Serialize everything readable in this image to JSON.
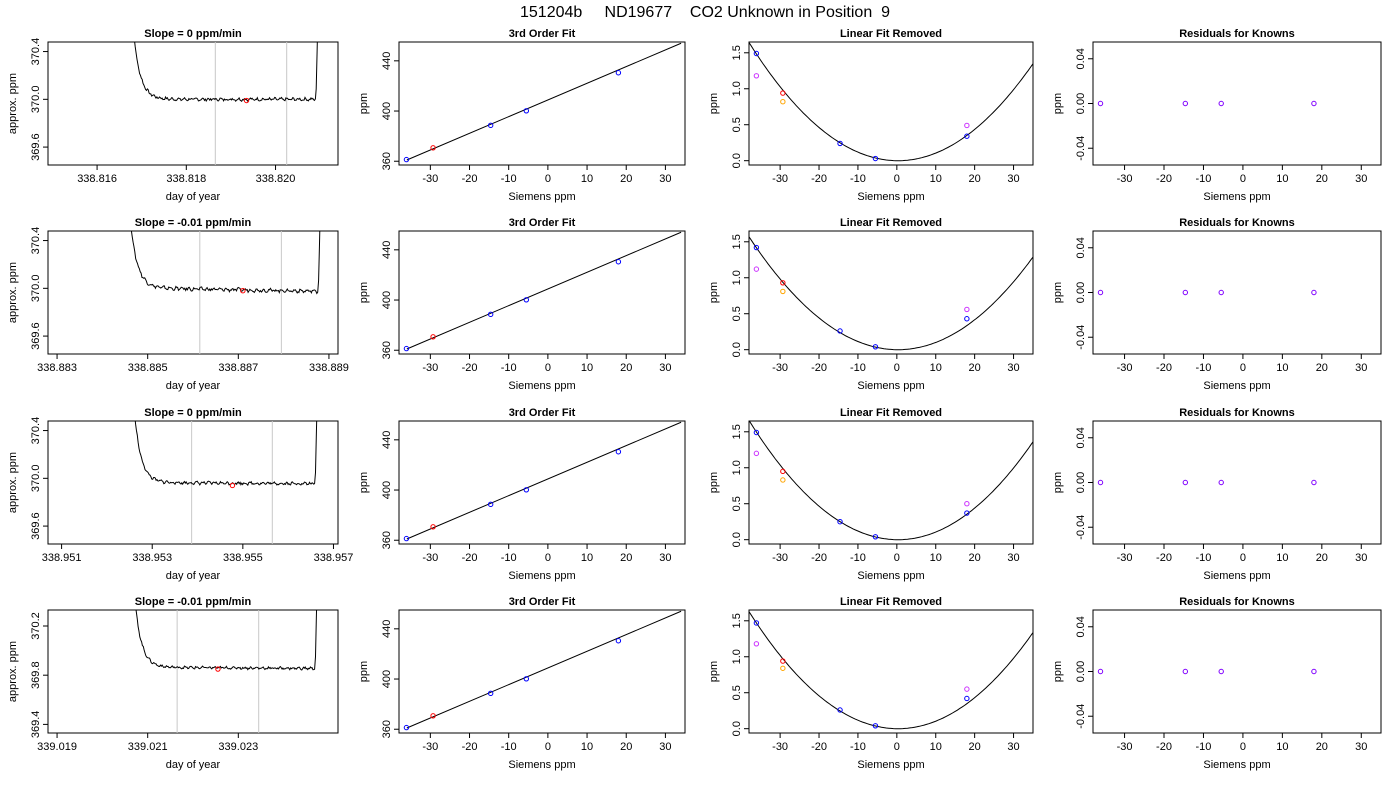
{
  "suptitle": "151204b     ND19677    CO2 Unknown in Position  9",
  "colors": {
    "trace": "#000000",
    "window_lines": "#c8c8c8",
    "blue": "#0000ff",
    "red": "#ff0000",
    "orange": "#ffa500",
    "magenta": "#cc33ff",
    "purple": "#8000ff"
  },
  "rows": [
    {
      "drift": {
        "title": "Slope =  0  ppm/min",
        "xlabel": "day of year",
        "ylabel": "approx. ppm",
        "xlim": [
          338.8149,
          338.8214
        ],
        "ylim": [
          369.45,
          370.48
        ],
        "xticks": [
          338.816,
          338.818,
          338.82
        ],
        "xtick_labels": [
          "338.816",
          "338.818",
          "338.820"
        ],
        "yticks": [
          369.6,
          370.0,
          370.4
        ],
        "ytick_labels": [
          "369.6",
          "370.0",
          "370.4"
        ],
        "start": 338.8167,
        "end": 338.82097,
        "level": 370.0,
        "ripple": 0.012,
        "tilt": 0.0,
        "window": [
          338.81865,
          338.82025
        ],
        "marker": [
          338.81935,
          369.99
        ]
      },
      "fit": {
        "title": "3rd Order Fit",
        "xlabel": "Siemens ppm",
        "ylabel": "ppm",
        "xlim": [
          -38,
          35
        ],
        "ylim": [
          357,
          455
        ],
        "xticks": [
          -30,
          -20,
          -10,
          0,
          10,
          20,
          30
        ],
        "yticks": [
          360,
          400,
          440
        ],
        "line": [
          [
            -36,
            361
          ],
          [
            34,
            454
          ]
        ],
        "points_blue": [
          [
            -36.1,
            361.3
          ],
          [
            -14.6,
            388.6
          ],
          [
            -5.5,
            400.2
          ],
          [
            18.0,
            430.5
          ]
        ],
        "points_red": [
          [
            -29.3,
            370.7
          ]
        ]
      },
      "lin": {
        "title": "Linear Fit Removed",
        "xlabel": "Siemens ppm",
        "ylabel": "ppm",
        "xlim": [
          -38,
          35
        ],
        "ylim": [
          -0.06,
          1.65
        ],
        "xticks": [
          -30,
          -20,
          -10,
          0,
          10,
          20,
          30
        ],
        "yticks": [
          0.0,
          0.5,
          1.0,
          1.5
        ],
        "ytick_labels": [
          "0.0",
          "0.5",
          "1.0",
          "1.5"
        ],
        "curve_a": 0.00112,
        "curve_x0": 0.3,
        "points_blue": [
          [
            -36.1,
            1.49
          ],
          [
            -14.6,
            0.24
          ],
          [
            -5.5,
            0.03
          ],
          [
            18.0,
            0.34
          ]
        ],
        "points_red": [
          [
            -29.3,
            0.94
          ]
        ],
        "points_orange": [
          [
            -29.3,
            0.82
          ]
        ],
        "points_magenta": [
          [
            -36.1,
            1.18
          ],
          [
            18.0,
            0.49
          ]
        ]
      },
      "res": {
        "title": "Residuals for Knowns",
        "xlabel": "Siemens ppm",
        "ylabel": "ppm",
        "xlim": [
          -38,
          35
        ],
        "ylim": [
          -0.055,
          0.055
        ],
        "xticks": [
          -30,
          -20,
          -10,
          0,
          10,
          20,
          30
        ],
        "yticks": [
          -0.04,
          0.0,
          0.04
        ],
        "ytick_labels": [
          "-0.04",
          "0.00",
          "0.04"
        ],
        "points": [
          [
            -36.1,
            0.0
          ],
          [
            -14.6,
            0.0
          ],
          [
            -5.5,
            0.0
          ],
          [
            18.0,
            0.0
          ]
        ]
      }
    },
    {
      "drift": {
        "title": "Slope =  -0.01  ppm/min",
        "xlabel": "day of year",
        "ylabel": "approx. ppm",
        "xlim": [
          338.8828,
          338.8892
        ],
        "ylim": [
          369.45,
          370.48
        ],
        "xticks": [
          338.883,
          338.885,
          338.887,
          338.889
        ],
        "xtick_labels": [
          "338.883",
          "338.885",
          "338.887",
          "338.889"
        ],
        "yticks": [
          369.6,
          370.0,
          370.4
        ],
        "ytick_labels": [
          "369.6",
          "370.0",
          "370.4"
        ],
        "start": 338.8845,
        "end": 338.88883,
        "level": 369.99,
        "ripple": 0.014,
        "tilt": -0.03,
        "window": [
          338.88615,
          338.88795
        ],
        "marker": [
          338.8871,
          369.98
        ]
      },
      "fit": {
        "title": "3rd Order Fit",
        "xlabel": "Siemens ppm",
        "ylabel": "ppm",
        "xlim": [
          -38,
          35
        ],
        "ylim": [
          357,
          455
        ],
        "xticks": [
          -30,
          -20,
          -10,
          0,
          10,
          20,
          30
        ],
        "yticks": [
          360,
          400,
          440
        ],
        "line": [
          [
            -36,
            361
          ],
          [
            34,
            454
          ]
        ],
        "points_blue": [
          [
            -36.1,
            361.3
          ],
          [
            -14.6,
            388.6
          ],
          [
            -5.5,
            400.2
          ],
          [
            18.0,
            430.5
          ]
        ],
        "points_red": [
          [
            -29.3,
            370.7
          ]
        ]
      },
      "lin": {
        "title": "Linear Fit Removed",
        "xlabel": "Siemens ppm",
        "ylabel": "ppm",
        "xlim": [
          -38,
          35
        ],
        "ylim": [
          -0.06,
          1.65
        ],
        "xticks": [
          -30,
          -20,
          -10,
          0,
          10,
          20,
          30
        ],
        "yticks": [
          0.0,
          0.5,
          1.0,
          1.5
        ],
        "ytick_labels": [
          "0.0",
          "0.5",
          "1.0",
          "1.5"
        ],
        "curve_a": 0.00107,
        "curve_x0": 0.3,
        "points_blue": [
          [
            -36.1,
            1.42
          ],
          [
            -14.6,
            0.26
          ],
          [
            -5.5,
            0.04
          ],
          [
            18.0,
            0.43
          ]
        ],
        "points_red": [
          [
            -29.3,
            0.93
          ]
        ],
        "points_orange": [
          [
            -29.3,
            0.81
          ]
        ],
        "points_magenta": [
          [
            -36.1,
            1.12
          ],
          [
            18.0,
            0.56
          ]
        ]
      },
      "res": {
        "title": "Residuals for Knowns",
        "xlabel": "Siemens ppm",
        "ylabel": "ppm",
        "xlim": [
          -38,
          35
        ],
        "ylim": [
          -0.055,
          0.055
        ],
        "xticks": [
          -30,
          -20,
          -10,
          0,
          10,
          20,
          30
        ],
        "yticks": [
          -0.04,
          0.0,
          0.04
        ],
        "ytick_labels": [
          "-0.04",
          "0.00",
          "0.04"
        ],
        "points": [
          [
            -36.1,
            0.0
          ],
          [
            -14.6,
            0.0
          ],
          [
            -5.5,
            0.0
          ],
          [
            18.0,
            0.0
          ]
        ]
      }
    },
    {
      "drift": {
        "title": "Slope =  0  ppm/min",
        "xlabel": "day of year",
        "ylabel": "approx. ppm",
        "xlim": [
          338.9507,
          338.9571
        ],
        "ylim": [
          369.45,
          370.48
        ],
        "xticks": [
          338.951,
          338.953,
          338.955,
          338.957
        ],
        "xtick_labels": [
          "338.951",
          "338.953",
          "338.955",
          "338.957"
        ],
        "yticks": [
          369.6,
          370.0,
          370.4
        ],
        "ytick_labels": [
          "369.6",
          "370.0",
          "370.4"
        ],
        "start": 338.9525,
        "end": 338.95666,
        "level": 369.96,
        "ripple": 0.012,
        "tilt": -0.01,
        "window": [
          338.95387,
          338.95565
        ],
        "marker": [
          338.95477,
          369.94
        ]
      },
      "fit": {
        "title": "3rd Order Fit",
        "xlabel": "Siemens ppm",
        "ylabel": "ppm",
        "xlim": [
          -38,
          35
        ],
        "ylim": [
          357,
          455
        ],
        "xticks": [
          -30,
          -20,
          -10,
          0,
          10,
          20,
          30
        ],
        "yticks": [
          360,
          400,
          440
        ],
        "line": [
          [
            -36,
            361
          ],
          [
            34,
            454
          ]
        ],
        "points_blue": [
          [
            -36.1,
            361.3
          ],
          [
            -14.6,
            388.6
          ],
          [
            -5.5,
            400.2
          ],
          [
            18.0,
            430.5
          ]
        ],
        "points_red": [
          [
            -29.3,
            370.7
          ]
        ]
      },
      "lin": {
        "title": "Linear Fit Removed",
        "xlabel": "Siemens ppm",
        "ylabel": "ppm",
        "xlim": [
          -38,
          35
        ],
        "ylim": [
          -0.06,
          1.65
        ],
        "xticks": [
          -30,
          -20,
          -10,
          0,
          10,
          20,
          30
        ],
        "yticks": [
          0.0,
          0.5,
          1.0,
          1.5
        ],
        "ytick_labels": [
          "0.0",
          "0.5",
          "1.0",
          "1.5"
        ],
        "curve_a": 0.00113,
        "curve_x0": 0.3,
        "points_blue": [
          [
            -36.1,
            1.49
          ],
          [
            -14.6,
            0.25
          ],
          [
            -5.5,
            0.04
          ],
          [
            18.0,
            0.37
          ]
        ],
        "points_red": [
          [
            -29.3,
            0.95
          ]
        ],
        "points_orange": [
          [
            -29.3,
            0.83
          ]
        ],
        "points_magenta": [
          [
            -36.1,
            1.2
          ],
          [
            18.0,
            0.5
          ]
        ]
      },
      "res": {
        "title": "Residuals for Knowns",
        "xlabel": "Siemens ppm",
        "ylabel": "ppm",
        "xlim": [
          -38,
          35
        ],
        "ylim": [
          -0.055,
          0.055
        ],
        "xticks": [
          -30,
          -20,
          -10,
          0,
          10,
          20,
          30
        ],
        "yticks": [
          -0.04,
          0.0,
          0.04
        ],
        "ytick_labels": [
          "-0.04",
          "0.00",
          "0.04"
        ],
        "points": [
          [
            -36.1,
            0.0
          ],
          [
            -14.6,
            0.0
          ],
          [
            -5.5,
            0.0
          ],
          [
            18.0,
            0.0
          ]
        ]
      }
    },
    {
      "drift": {
        "title": "Slope =  -0.01  ppm/min",
        "xlabel": "day of year",
        "ylabel": "approx. ppm",
        "xlim": [
          339.0188,
          339.0252
        ],
        "ylim": [
          369.33,
          370.33
        ],
        "xticks": [
          339.019,
          339.021,
          339.023
        ],
        "xtick_labels": [
          "339.019",
          "339.021",
          "339.023"
        ],
        "yticks": [
          369.4,
          369.8,
          370.2
        ],
        "ytick_labels": [
          "369.4",
          "369.8",
          "370.2"
        ],
        "start": 339.0206,
        "end": 339.02476,
        "level": 369.86,
        "ripple": 0.01,
        "tilt": -0.01,
        "window": [
          339.02165,
          339.02345
        ],
        "marker": [
          339.02255,
          369.85
        ]
      },
      "fit": {
        "title": "3rd Order Fit",
        "xlabel": "Siemens ppm",
        "ylabel": "ppm",
        "xlim": [
          -38,
          35
        ],
        "ylim": [
          357,
          455
        ],
        "xticks": [
          -30,
          -20,
          -10,
          0,
          10,
          20,
          30
        ],
        "yticks": [
          360,
          400,
          440
        ],
        "line": [
          [
            -36,
            361
          ],
          [
            34,
            454
          ]
        ],
        "points_blue": [
          [
            -36.1,
            361.3
          ],
          [
            -14.6,
            388.6
          ],
          [
            -5.5,
            400.2
          ],
          [
            18.0,
            430.5
          ]
        ],
        "points_red": [
          [
            -29.3,
            370.7
          ]
        ]
      },
      "lin": {
        "title": "Linear Fit Removed",
        "xlabel": "Siemens ppm",
        "ylabel": "ppm",
        "xlim": [
          -38,
          35
        ],
        "ylim": [
          -0.06,
          1.65
        ],
        "xticks": [
          -30,
          -20,
          -10,
          0,
          10,
          20,
          30
        ],
        "yticks": [
          0.0,
          0.5,
          1.0,
          1.5
        ],
        "ytick_labels": [
          "0.0",
          "0.5",
          "1.0",
          "1.5"
        ],
        "curve_a": 0.00111,
        "curve_x0": 0.3,
        "points_blue": [
          [
            -36.1,
            1.47
          ],
          [
            -14.6,
            0.26
          ],
          [
            -5.5,
            0.04
          ],
          [
            18.0,
            0.42
          ]
        ],
        "points_red": [
          [
            -29.3,
            0.94
          ]
        ],
        "points_orange": [
          [
            -29.3,
            0.84
          ]
        ],
        "points_magenta": [
          [
            -36.1,
            1.18
          ],
          [
            18.0,
            0.55
          ]
        ]
      },
      "res": {
        "title": "Residuals for Knowns",
        "xlabel": "Siemens ppm",
        "ylabel": "ppm",
        "xlim": [
          -38,
          35
        ],
        "ylim": [
          -0.055,
          0.055
        ],
        "xticks": [
          -30,
          -20,
          -10,
          0,
          10,
          20,
          30
        ],
        "yticks": [
          -0.04,
          0.0,
          0.04
        ],
        "ytick_labels": [
          "-0.04",
          "0.00",
          "0.04"
        ],
        "points": [
          [
            -36.1,
            0.0
          ],
          [
            -14.6,
            0.0
          ],
          [
            -5.5,
            0.0
          ],
          [
            18.0,
            0.0
          ]
        ]
      }
    }
  ],
  "chart_data": {
    "type": "line",
    "panel_grid": "4 rows x 4 columns",
    "title": "151204b     ND19677    CO2 Unknown in Position  9",
    "columns": [
      "drift trace vs day of year",
      "3rd Order Fit",
      "Linear Fit Removed",
      "Residuals for Knowns"
    ],
    "known_siemens_ppm": [
      -36.1,
      -29.3,
      -14.6,
      -5.5,
      18.0
    ],
    "known_ppm": [
      361.3,
      370.7,
      388.6,
      400.2,
      430.5
    ],
    "residuals": [
      0.0,
      0.0,
      0.0,
      0.0
    ],
    "slopes_ppm_per_min": [
      0,
      -0.01,
      0,
      -0.01
    ]
  }
}
